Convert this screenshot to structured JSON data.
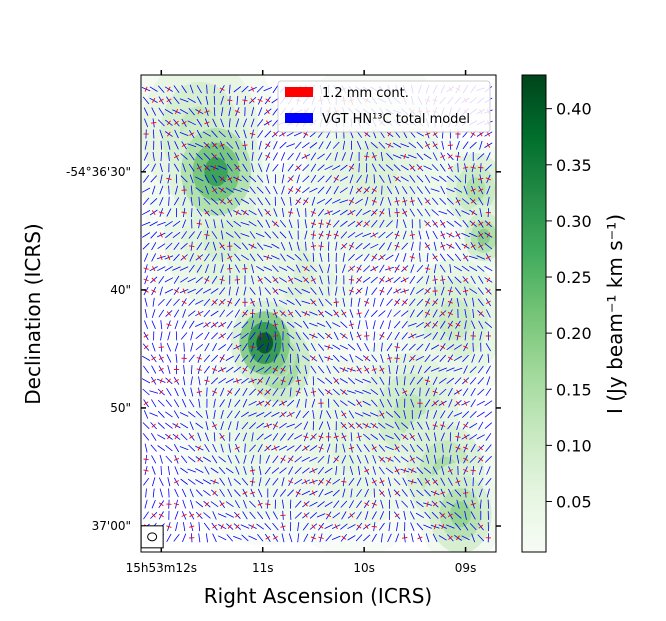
{
  "chart_data": {
    "type": "heatmap",
    "title": "",
    "xlabel": "Right Ascension (ICRS)",
    "ylabel": "Declination (ICRS)",
    "x_ticks": [
      {
        "sec": 12,
        "label": "15h53m12s"
      },
      {
        "sec": 11,
        "label": "11s"
      },
      {
        "sec": 10,
        "label": "10s"
      },
      {
        "sec": 9,
        "label": "09s"
      }
    ],
    "x_range_sec": [
      12.2,
      8.7
    ],
    "y_ticks": [
      {
        "arcsec": 30,
        "label": "-54°36'30\""
      },
      {
        "arcsec": 40,
        "label": "40\""
      },
      {
        "arcsec": 50,
        "label": "50\""
      },
      {
        "arcsec": 60,
        "label": "37'00\""
      }
    ],
    "y_range_arcsec": [
      21.8,
      62.2
    ],
    "colorbar": {
      "label": "I (Jy beam⁻¹ km s⁻¹)",
      "range": [
        0.005,
        0.43
      ],
      "ticks": [
        0.05,
        0.1,
        0.15,
        0.2,
        0.25,
        0.3,
        0.35,
        0.4
      ],
      "tick_labels": [
        "0.05",
        "0.10",
        "0.15",
        "0.20",
        "0.25",
        "0.30",
        "0.35",
        "0.40"
      ],
      "colormap": "Greens"
    },
    "legend": {
      "location": "upper right",
      "entries": [
        {
          "label": "1.2 mm cont.",
          "color": "#ff0000"
        },
        {
          "label": "VGT HN¹³C total model",
          "color": "#0000ff"
        }
      ]
    },
    "emission_peaks": [
      {
        "ra_sec": 11.46,
        "dec_arcsec": 30.0,
        "value": 0.3,
        "sigma_arcsec": 1.8
      },
      {
        "ra_sec": 10.98,
        "dec_arcsec": 44.5,
        "value": 0.42,
        "sigma_arcsec": 1.3
      },
      {
        "ra_sec": 10.84,
        "dec_arcsec": 46.2,
        "value": 0.22,
        "sigma_arcsec": 1.6
      },
      {
        "ra_sec": 11.62,
        "dec_arcsec": 26.5,
        "value": 0.12,
        "sigma_arcsec": 3.0
      },
      {
        "ra_sec": 11.4,
        "dec_arcsec": 35.5,
        "value": 0.09,
        "sigma_arcsec": 3.0
      },
      {
        "ra_sec": 10.7,
        "dec_arcsec": 38.5,
        "value": 0.08,
        "sigma_arcsec": 3.2
      },
      {
        "ra_sec": 9.55,
        "dec_arcsec": 50.5,
        "value": 0.13,
        "sigma_arcsec": 2.5
      },
      {
        "ra_sec": 9.2,
        "dec_arcsec": 55.5,
        "value": 0.16,
        "sigma_arcsec": 2.0
      },
      {
        "ra_sec": 9.05,
        "dec_arcsec": 59.0,
        "value": 0.19,
        "sigma_arcsec": 1.6
      },
      {
        "ra_sec": 8.9,
        "dec_arcsec": 31.5,
        "value": 0.15,
        "sigma_arcsec": 1.5
      },
      {
        "ra_sec": 8.82,
        "dec_arcsec": 35.5,
        "value": 0.2,
        "sigma_arcsec": 1.0
      },
      {
        "ra_sec": 9.1,
        "dec_arcsec": 42.5,
        "value": 0.11,
        "sigma_arcsec": 2.5
      },
      {
        "ra_sec": 9.9,
        "dec_arcsec": 30.0,
        "value": 0.08,
        "sigma_arcsec": 3.5
      },
      {
        "ra_sec": 10.1,
        "dec_arcsec": 53.0,
        "value": 0.07,
        "sigma_arcsec": 3.5
      },
      {
        "ra_sec": 11.0,
        "dec_arcsec": 52.0,
        "value": 0.06,
        "sigma_arcsec": 3.5
      }
    ],
    "beam": {
      "ra_sec": 12.1,
      "dec_arcsec": 61.0
    }
  }
}
